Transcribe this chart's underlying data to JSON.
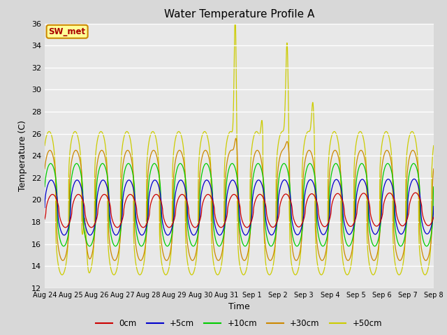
{
  "title": "Water Temperature Profile A",
  "xlabel": "Time",
  "ylabel": "Temperature (C)",
  "ylim": [
    12,
    36
  ],
  "yticks": [
    12,
    14,
    16,
    18,
    20,
    22,
    24,
    26,
    28,
    30,
    32,
    34,
    36
  ],
  "xtick_labels": [
    "Aug 24",
    "Aug 25",
    "Aug 26",
    "Aug 27",
    "Aug 28",
    "Aug 29",
    "Aug 30",
    "Aug 31",
    "Sep 1",
    "Sep 2",
    "Sep 3",
    "Sep 4",
    "Sep 5",
    "Sep 6",
    "Sep 7",
    "Sep 8"
  ],
  "legend_labels": [
    "0cm",
    "+5cm",
    "+10cm",
    "+30cm",
    "+50cm"
  ],
  "legend_colors": [
    "#cc0000",
    "#0000cc",
    "#00cc00",
    "#cc8800",
    "#cccc00"
  ],
  "bg_color": "#d8d8d8",
  "plot_bg_color": "#e8e8e8",
  "annotation_text": "SW_met",
  "annotation_fg": "#aa0000",
  "annotation_bg": "#ffff99",
  "annotation_border": "#cc8800",
  "n_days": 15,
  "pts_per_day": 96
}
